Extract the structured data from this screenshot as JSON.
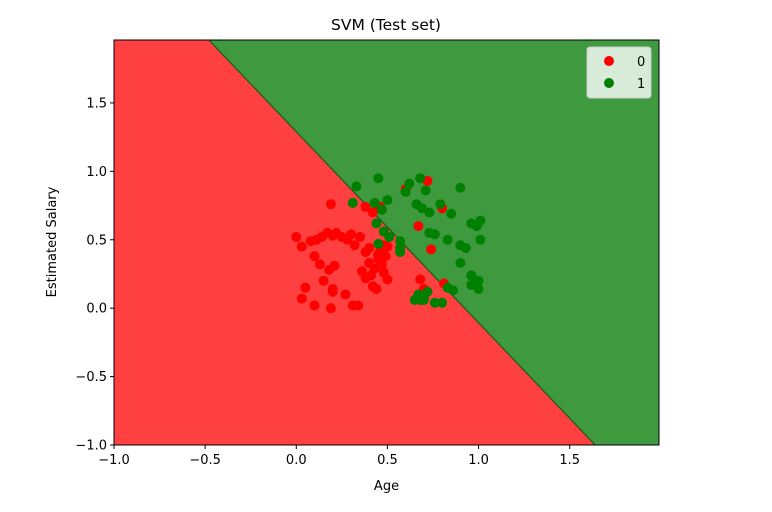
{
  "chart_data": {
    "type": "scatter",
    "title": "SVM (Test set)",
    "xlabel": "Age",
    "ylabel": "Estimated Salary",
    "xlim": [
      -1.0,
      1.99
    ],
    "ylim": [
      -1.0,
      1.96
    ],
    "x_ticks": [
      -1.0,
      -0.5,
      0.0,
      0.5,
      1.0,
      1.5
    ],
    "x_tick_labels": [
      "−1.0",
      "−0.5",
      "0.0",
      "0.5",
      "1.0",
      "1.5"
    ],
    "y_ticks": [
      -1.0,
      -0.5,
      0.0,
      0.5,
      1.0,
      1.5
    ],
    "y_tick_labels": [
      "−1.0",
      "−0.5",
      "0.0",
      "0.5",
      "1.0",
      "1.5"
    ],
    "grid": false,
    "legend_position": "top-right",
    "decision_boundary": {
      "points": [
        [
          -0.48,
          1.96
        ],
        [
          1.64,
          -1.0
        ]
      ],
      "region_colors": {
        "below": "#ff4040",
        "above": "#3f9a3f"
      },
      "boundary_color": "#1a5a1a"
    },
    "series": [
      {
        "name": "0",
        "color": "#ff0000",
        "points": [
          [
            0.0,
            0.52
          ],
          [
            0.03,
            0.45
          ],
          [
            0.08,
            0.49
          ],
          [
            0.11,
            0.5
          ],
          [
            0.14,
            0.52
          ],
          [
            0.17,
            0.55
          ],
          [
            0.2,
            0.53
          ],
          [
            0.22,
            0.55
          ],
          [
            0.25,
            0.52
          ],
          [
            0.28,
            0.5
          ],
          [
            0.3,
            0.54
          ],
          [
            0.32,
            0.46
          ],
          [
            0.35,
            0.52
          ],
          [
            0.19,
            0.76
          ],
          [
            0.38,
            0.74
          ],
          [
            0.42,
            0.7
          ],
          [
            0.46,
            0.74
          ],
          [
            0.6,
            0.87
          ],
          [
            0.72,
            0.93
          ],
          [
            0.8,
            0.73
          ],
          [
            0.67,
            0.6
          ],
          [
            0.74,
            0.43
          ],
          [
            0.1,
            0.38
          ],
          [
            0.13,
            0.32
          ],
          [
            0.18,
            0.28
          ],
          [
            0.21,
            0.31
          ],
          [
            0.15,
            0.2
          ],
          [
            0.2,
            0.14
          ],
          [
            0.2,
            0.12
          ],
          [
            0.05,
            0.15
          ],
          [
            0.03,
            0.07
          ],
          [
            0.1,
            0.02
          ],
          [
            0.19,
            0.0
          ],
          [
            0.27,
            0.1
          ],
          [
            0.31,
            0.02
          ],
          [
            0.34,
            0.02
          ],
          [
            0.36,
            0.27
          ],
          [
            0.38,
            0.22
          ],
          [
            0.4,
            0.33
          ],
          [
            0.41,
            0.24
          ],
          [
            0.43,
            0.29
          ],
          [
            0.45,
            0.36
          ],
          [
            0.46,
            0.42
          ],
          [
            0.47,
            0.32
          ],
          [
            0.48,
            0.26
          ],
          [
            0.49,
            0.38
          ],
          [
            0.44,
            0.14
          ],
          [
            0.5,
            0.21
          ],
          [
            0.45,
            0.39
          ],
          [
            0.5,
            0.45
          ],
          [
            0.48,
            0.46
          ],
          [
            0.4,
            0.44
          ],
          [
            0.38,
            0.41
          ],
          [
            0.42,
            0.16
          ],
          [
            0.68,
            0.21
          ],
          [
            0.7,
            0.14
          ],
          [
            0.81,
            0.18
          ]
        ]
      },
      {
        "name": "1",
        "color": "#008000",
        "points": [
          [
            0.33,
            0.89
          ],
          [
            0.31,
            0.77
          ],
          [
            0.45,
            0.95
          ],
          [
            0.43,
            0.77
          ],
          [
            0.47,
            0.72
          ],
          [
            0.5,
            0.79
          ],
          [
            0.44,
            0.62
          ],
          [
            0.48,
            0.56
          ],
          [
            0.45,
            0.47
          ],
          [
            0.51,
            0.52
          ],
          [
            0.57,
            0.49
          ],
          [
            0.57,
            0.44
          ],
          [
            0.57,
            0.41
          ],
          [
            0.62,
            0.91
          ],
          [
            0.6,
            0.85
          ],
          [
            0.68,
            0.95
          ],
          [
            0.71,
            0.86
          ],
          [
            0.66,
            0.76
          ],
          [
            0.69,
            0.73
          ],
          [
            0.73,
            0.7
          ],
          [
            0.79,
            0.76
          ],
          [
            0.85,
            0.69
          ],
          [
            0.9,
            0.88
          ],
          [
            0.73,
            0.55
          ],
          [
            0.76,
            0.54
          ],
          [
            0.83,
            0.5
          ],
          [
            0.9,
            0.46
          ],
          [
            0.96,
            0.62
          ],
          [
            0.99,
            0.6
          ],
          [
            1.01,
            0.64
          ],
          [
            1.01,
            0.5
          ],
          [
            0.93,
            0.44
          ],
          [
            0.9,
            0.33
          ],
          [
            0.96,
            0.24
          ],
          [
            0.96,
            0.17
          ],
          [
            1.0,
            0.2
          ],
          [
            1.0,
            0.14
          ],
          [
            0.86,
            0.13
          ],
          [
            0.83,
            0.15
          ],
          [
            0.8,
            0.04
          ],
          [
            0.76,
            0.04
          ],
          [
            0.72,
            0.12
          ],
          [
            0.7,
            0.07
          ],
          [
            0.67,
            0.1
          ],
          [
            0.65,
            0.06
          ],
          [
            0.68,
            0.06
          ],
          [
            0.7,
            0.06
          ]
        ]
      }
    ]
  }
}
